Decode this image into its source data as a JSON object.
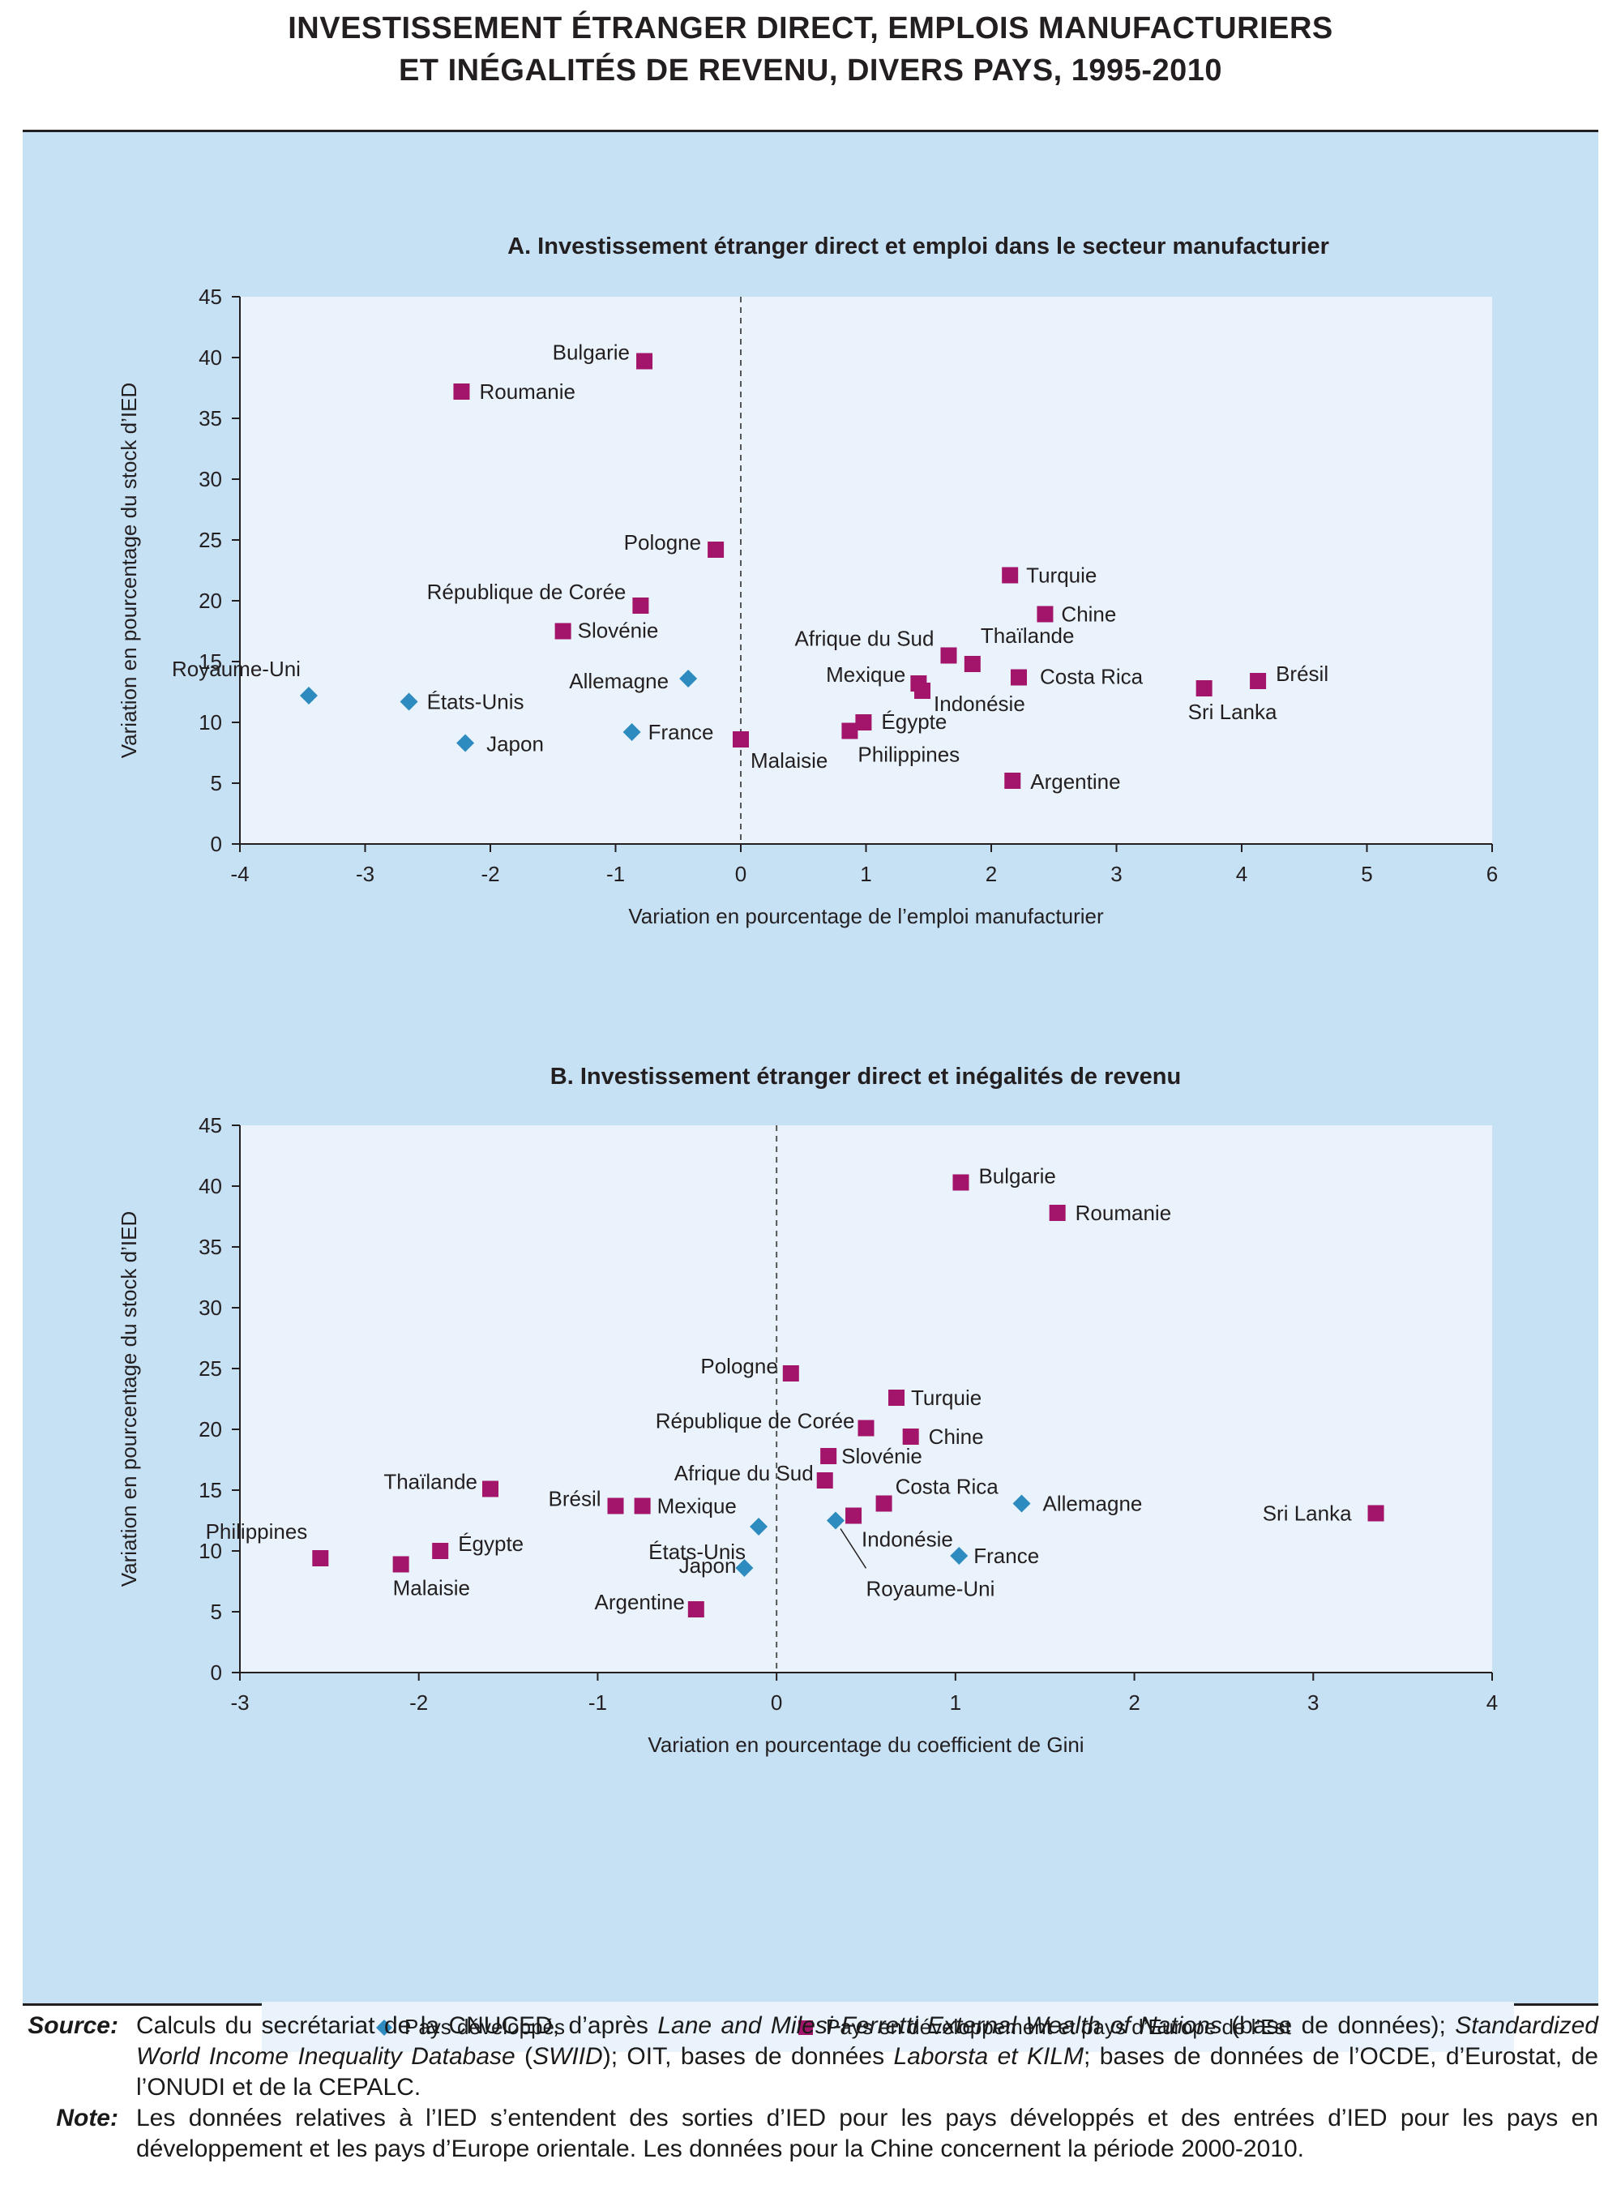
{
  "title": {
    "line1": "INVESTISSEMENT ÉTRANGER DIRECT, EMPLOIS MANUFACTURIERS",
    "line2": "ET INÉGALITÉS DE REVENU, DIVERS PAYS, 1995-2010"
  },
  "colors": {
    "background": "#c6e0f4",
    "plot": "#eaf3fb",
    "developed": "#2e8bc0",
    "developing": "#a3156a"
  },
  "legend": {
    "developed": "Pays développés",
    "developing": "Pays en développement et pays d’Europe de l’Est"
  },
  "chart_data": [
    {
      "type": "scatter",
      "title": "A. Investissement étranger direct et emploi dans le secteur manufacturier",
      "xlabel": "Variation en pourcentage de l’emploi manufacturier",
      "ylabel": "Variation en pourcentage du stock d’IED",
      "xlim": [
        -4,
        6
      ],
      "ylim": [
        0,
        45
      ],
      "xticks": [
        -4,
        -3,
        -2,
        -1,
        0,
        1,
        2,
        3,
        4,
        5,
        6
      ],
      "yticks": [
        0,
        5,
        10,
        15,
        20,
        25,
        30,
        35,
        40,
        45
      ],
      "grid": false,
      "series": [
        {
          "name": "Pays développés",
          "marker": "diamond",
          "points": [
            {
              "label": "Royaume-Uni",
              "x": -3.45,
              "y": 12.2
            },
            {
              "label": "États-Unis",
              "x": -2.65,
              "y": 11.7
            },
            {
              "label": "Japon",
              "x": -2.2,
              "y": 8.3
            },
            {
              "label": "Allemagne",
              "x": -0.42,
              "y": 13.6
            },
            {
              "label": "France",
              "x": -0.87,
              "y": 9.2
            }
          ]
        },
        {
          "name": "Pays en développement et pays d’Europe de l’Est",
          "marker": "square",
          "points": [
            {
              "label": "Bulgarie",
              "x": -0.77,
              "y": 39.7
            },
            {
              "label": "Roumanie",
              "x": -2.23,
              "y": 37.2
            },
            {
              "label": "Pologne",
              "x": -0.2,
              "y": 24.2
            },
            {
              "label": "République de Corée",
              "x": -0.8,
              "y": 19.6
            },
            {
              "label": "Slovénie",
              "x": -1.42,
              "y": 17.5
            },
            {
              "label": "Malaisie",
              "x": 0.0,
              "y": 8.6
            },
            {
              "label": "Égypte",
              "x": 0.98,
              "y": 10.0
            },
            {
              "label": "Philippines",
              "x": 0.87,
              "y": 9.3
            },
            {
              "label": "Mexique",
              "x": 1.42,
              "y": 13.2
            },
            {
              "label": "Indonésie",
              "x": 1.45,
              "y": 12.6
            },
            {
              "label": "Afrique du Sud",
              "x": 1.66,
              "y": 15.5
            },
            {
              "label": "Thaïlande",
              "x": 1.85,
              "y": 14.8
            },
            {
              "label": "Costa Rica",
              "x": 2.22,
              "y": 13.7
            },
            {
              "label": "Turquie",
              "x": 2.15,
              "y": 22.1
            },
            {
              "label": "Chine",
              "x": 2.43,
              "y": 18.9
            },
            {
              "label": "Argentine",
              "x": 2.17,
              "y": 5.2
            },
            {
              "label": "Sri Lanka",
              "x": 3.7,
              "y": 12.8
            },
            {
              "label": "Brésil",
              "x": 4.13,
              "y": 13.4
            }
          ]
        }
      ]
    },
    {
      "type": "scatter",
      "title": "B. Investissement étranger direct et inégalités de revenu",
      "xlabel": "Variation en pourcentage du coefficient de Gini",
      "ylabel": "Variation en pourcentage du stock d’IED",
      "xlim": [
        -3,
        4
      ],
      "ylim": [
        0,
        45
      ],
      "xticks": [
        -3,
        -2,
        -1,
        0,
        1,
        2,
        3,
        4
      ],
      "yticks": [
        0,
        5,
        10,
        15,
        20,
        25,
        30,
        35,
        40,
        45
      ],
      "grid": false,
      "series": [
        {
          "name": "Pays développés",
          "marker": "diamond",
          "points": [
            {
              "label": "États-Unis",
              "x": -0.1,
              "y": 12.0
            },
            {
              "label": "Japon",
              "x": -0.18,
              "y": 8.6
            },
            {
              "label": "Royaume-Uni",
              "x": 0.33,
              "y": 12.5
            },
            {
              "label": "Allemagne",
              "x": 1.37,
              "y": 13.9
            },
            {
              "label": "France",
              "x": 1.02,
              "y": 9.6
            }
          ]
        },
        {
          "name": "Pays en développement et pays d’Europe de l’Est",
          "marker": "square",
          "points": [
            {
              "label": "Bulgarie",
              "x": 1.03,
              "y": 40.3
            },
            {
              "label": "Roumanie",
              "x": 1.57,
              "y": 37.8
            },
            {
              "label": "Pologne",
              "x": 0.08,
              "y": 24.6
            },
            {
              "label": "Turquie",
              "x": 0.67,
              "y": 22.6
            },
            {
              "label": "République de Corée",
              "x": 0.5,
              "y": 20.1
            },
            {
              "label": "Chine",
              "x": 0.75,
              "y": 19.4
            },
            {
              "label": "Slovénie",
              "x": 0.29,
              "y": 17.8
            },
            {
              "label": "Afrique du Sud",
              "x": 0.27,
              "y": 15.8
            },
            {
              "label": "Costa Rica",
              "x": 0.6,
              "y": 13.9
            },
            {
              "label": "Indonésie",
              "x": 0.43,
              "y": 12.9
            },
            {
              "label": "Sri Lanka",
              "x": 3.35,
              "y": 13.1
            },
            {
              "label": "Thaïlande",
              "x": -1.6,
              "y": 15.1
            },
            {
              "label": "Brésil",
              "x": -0.9,
              "y": 13.7
            },
            {
              "label": "Mexique",
              "x": -0.75,
              "y": 13.7
            },
            {
              "label": "Philippines",
              "x": -2.55,
              "y": 9.4
            },
            {
              "label": "Malaisie",
              "x": -2.1,
              "y": 8.9
            },
            {
              "label": "Égypte",
              "x": -1.88,
              "y": 10.0
            },
            {
              "label": "Argentine",
              "x": -0.45,
              "y": 5.2
            }
          ]
        }
      ]
    }
  ],
  "notes": {
    "source_key": "Source",
    "source_p1": "Calculs du secrétariat de la CNUCED, d’après ",
    "source_i1": "Lane and Milesi-Ferretti External Wealth of Nations",
    "source_p2": " (base de données); ",
    "source_i2": "Standardized World Income Inequality Database",
    "source_p3": " (",
    "source_i3": "SWIID",
    "source_p4": "); OIT, bases de données ",
    "source_i4": "Laborsta et KILM",
    "source_p5": "; bases de données de l’OCDE, d’Eurostat, de l’ONUDI et de la CEPALC.",
    "note_key": "Note",
    "note_text": "Les données relatives à l’IED s’entendent des sorties d’IED pour les pays développés et des entrées d’IED pour les pays en développement et les pays d’Europe orientale. Les données pour la Chine concernent la période 2000-2010."
  }
}
